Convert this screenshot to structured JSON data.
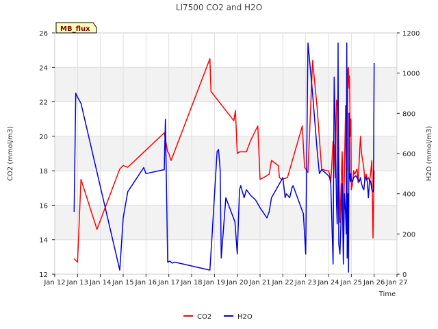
{
  "chart_data": {
    "type": "line",
    "title": "LI7500 CO2 and H2O",
    "site_badge": "MB_flux",
    "xlabel": "Time",
    "ylabel_left": "CO2 (mmol/m3)",
    "ylabel_right": "H2O (mmol/m3)",
    "x_range": [
      12,
      27
    ],
    "x_ticks": [
      {
        "value": 12,
        "label": "Jan 12"
      },
      {
        "value": 13,
        "label": "Jan 13"
      },
      {
        "value": 14,
        "label": "Jan 14"
      },
      {
        "value": 15,
        "label": "Jan 15"
      },
      {
        "value": 16,
        "label": "Jan 16"
      },
      {
        "value": 17,
        "label": "Jan 17"
      },
      {
        "value": 18,
        "label": "Jan 18"
      },
      {
        "value": 19,
        "label": "Jan 19"
      },
      {
        "value": 20,
        "label": "Jan 20"
      },
      {
        "value": 21,
        "label": "Jan 21"
      },
      {
        "value": 22,
        "label": "Jan 22"
      },
      {
        "value": 23,
        "label": "Jan 23"
      },
      {
        "value": 24,
        "label": "Jan 24"
      },
      {
        "value": 25,
        "label": "Jan 25"
      },
      {
        "value": 26,
        "label": "Jan 26"
      },
      {
        "value": 27,
        "label": "Jan 27"
      }
    ],
    "y_left_range": [
      12,
      26
    ],
    "y_left_ticks": [
      12,
      14,
      16,
      18,
      20,
      22,
      24,
      26
    ],
    "y_right_range": [
      0,
      1200
    ],
    "y_right_ticks": [
      0,
      200,
      400,
      600,
      800,
      1000,
      1200
    ],
    "colors": {
      "co2": "#ff0000",
      "h2o": "#0000dd",
      "band": "#f2f2f2",
      "grid": "#dddddd",
      "badge_bg": "#ffffc0"
    },
    "legend": [
      "CO2",
      "H2O"
    ],
    "series": [
      {
        "name": "CO2",
        "axis": "left",
        "x": [
          12.85,
          12.92,
          13.0,
          13.15,
          13.85,
          14.85,
          15.0,
          15.2,
          16.8,
          16.95,
          17.0,
          17.1,
          18.8,
          18.85,
          19.85,
          19.92,
          20.0,
          20.1,
          20.4,
          20.6,
          20.9,
          21.0,
          21.15,
          21.4,
          21.5,
          21.8,
          21.85,
          21.95,
          22.2,
          22.85,
          22.95,
          23.1,
          23.3,
          23.5,
          23.7,
          23.9,
          24.0,
          24.05,
          24.1,
          24.2,
          24.25,
          24.3,
          24.35,
          24.4,
          24.5,
          24.6,
          24.62,
          24.65,
          24.75,
          24.78,
          24.8,
          24.82,
          24.85,
          24.87,
          24.9,
          24.92,
          24.95,
          24.98,
          25.0,
          25.05,
          25.1,
          25.15,
          25.25,
          25.3,
          25.35,
          25.4,
          25.45,
          25.5,
          25.55,
          25.6,
          25.65,
          25.7,
          25.75,
          25.8,
          25.85,
          25.9,
          25.95,
          26.0
        ],
        "values": [
          12.9,
          12.8,
          12.7,
          17.5,
          14.6,
          18.1,
          18.3,
          18.2,
          20.2,
          19.1,
          19.0,
          18.6,
          24.5,
          22.6,
          20.9,
          21.5,
          19.0,
          19.1,
          19.1,
          19.8,
          20.6,
          17.5,
          17.6,
          17.8,
          18.6,
          18.3,
          17.6,
          17.5,
          17.6,
          20.6,
          18.2,
          17.9,
          24.4,
          21.7,
          18.1,
          18.0,
          18.0,
          17.8,
          17.3,
          19.7,
          19.5,
          17.6,
          22.1,
          21.8,
          15.0,
          19.1,
          17.6,
          14.4,
          21.8,
          16.6,
          22.3,
          18.0,
          23.9,
          24.0,
          22.8,
          23.5,
          20.0,
          21.0,
          16.9,
          17.2,
          18.0,
          17.8,
          18.1,
          17.3,
          18.7,
          20.0,
          19.0,
          18.6,
          18.1,
          17.4,
          17.8,
          17.5,
          17.6,
          17.4,
          17.9,
          18.6,
          14.1,
          18.0
        ]
      },
      {
        "name": "H2O",
        "axis": "right",
        "x": [
          12.85,
          12.92,
          13.0,
          13.15,
          14.85,
          15.0,
          15.2,
          15.9,
          16.0,
          16.8,
          16.85,
          16.95,
          17.05,
          17.15,
          17.25,
          18.8,
          18.9,
          19.1,
          19.12,
          19.18,
          19.25,
          19.3,
          19.5,
          19.9,
          20.0,
          20.1,
          20.15,
          20.3,
          20.4,
          20.6,
          20.8,
          21.0,
          21.3,
          21.4,
          21.5,
          21.6,
          22.0,
          22.1,
          22.15,
          22.3,
          22.4,
          22.45,
          22.9,
          23.0,
          23.1,
          23.3,
          23.5,
          23.6,
          23.7,
          24.0,
          24.05,
          24.1,
          24.2,
          24.25,
          24.3,
          24.35,
          24.38,
          24.4,
          24.42,
          24.45,
          24.5,
          24.6,
          24.65,
          24.7,
          24.75,
          24.78,
          24.8,
          24.82,
          24.85,
          24.88,
          24.9,
          24.92,
          24.95,
          24.97,
          25.0,
          25.05,
          25.1,
          25.2,
          25.3,
          25.35,
          25.4,
          25.45,
          25.5,
          25.55,
          25.6,
          25.65,
          25.7,
          25.75,
          25.8,
          25.85,
          25.9,
          25.95,
          25.97,
          26.0
        ],
        "values": [
          310,
          900,
          880,
          850,
          20,
          280,
          410,
          530,
          500,
          520,
          770,
          60,
          65,
          55,
          60,
          20,
          200,
          580,
          610,
          620,
          520,
          80,
          380,
          260,
          100,
          420,
          440,
          380,
          420,
          390,
          370,
          330,
          280,
          310,
          380,
          400,
          480,
          380,
          400,
          380,
          430,
          440,
          300,
          100,
          1150,
          900,
          620,
          500,
          520,
          490,
          480,
          450,
          50,
          980,
          700,
          350,
          250,
          400,
          1150,
          150,
          100,
          450,
          50,
          400,
          300,
          200,
          1150,
          80,
          400,
          10,
          800,
          500,
          460,
          500,
          470,
          460,
          480,
          490,
          470,
          460,
          480,
          450,
          430,
          420,
          480,
          480,
          460,
          380,
          470,
          460,
          420,
          410,
          420,
          1050
        ]
      }
    ]
  }
}
